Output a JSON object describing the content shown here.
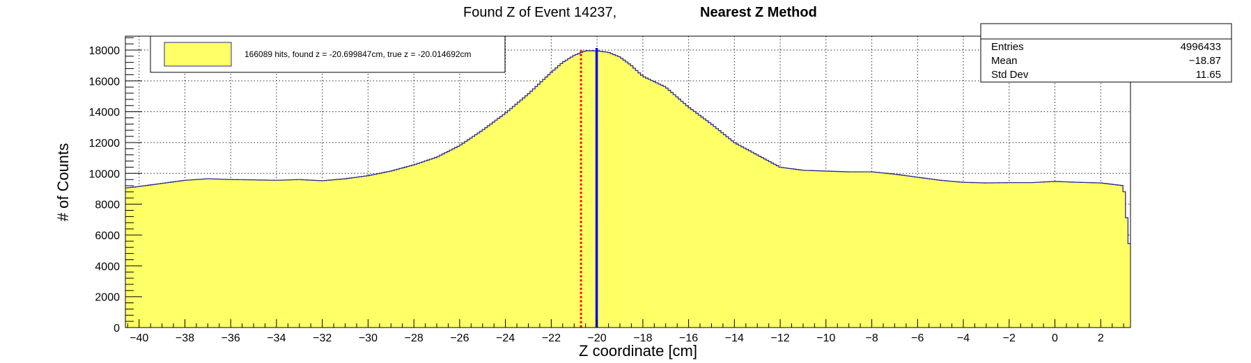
{
  "chart_data": {
    "type": "histogram",
    "title": "Found Z of Event 14237,",
    "title_bold": "Nearest Z Method",
    "xlabel": "Z coordinate [cm]",
    "ylabel": "# of Counts",
    "xlim": [
      -40.6,
      3.3
    ],
    "ylim": [
      0,
      18900
    ],
    "grid": true,
    "x_ticks": [
      -40,
      -38,
      -36,
      -34,
      -32,
      -30,
      -28,
      -26,
      -24,
      -22,
      -20,
      -18,
      -16,
      -14,
      -12,
      -10,
      -8,
      -6,
      -4,
      -2,
      0,
      2
    ],
    "y_ticks": [
      0,
      2000,
      4000,
      6000,
      8000,
      10000,
      12000,
      14000,
      16000,
      18000
    ],
    "fill_color": "#ffff66",
    "line_color": "#2a2a8c",
    "histogram_profile": {
      "x": [
        -40.6,
        -40,
        -39,
        -38,
        -37,
        -36,
        -35,
        -34,
        -33,
        -32,
        -31,
        -30,
        -29,
        -28,
        -27,
        -26,
        -25,
        -24,
        -23,
        -22,
        -21.5,
        -21,
        -20.5,
        -20,
        -19.5,
        -19,
        -18.5,
        -18,
        -17,
        -16,
        -15,
        -14,
        -13,
        -12,
        -11,
        -10,
        -9,
        -8,
        -7,
        -6,
        -5,
        -4,
        -3,
        -2,
        -1,
        0,
        1,
        2,
        3,
        3.3
      ],
      "y": [
        9050,
        9150,
        9350,
        9550,
        9650,
        9600,
        9580,
        9550,
        9600,
        9520,
        9650,
        9850,
        10150,
        10550,
        11050,
        11800,
        12800,
        13900,
        15150,
        16550,
        17200,
        17650,
        17950,
        17950,
        17850,
        17550,
        17000,
        16300,
        15600,
        14300,
        13200,
        12000,
        11200,
        10400,
        10200,
        10150,
        10100,
        10100,
        9950,
        9750,
        9550,
        9420,
        9380,
        9400,
        9400,
        9480,
        9420,
        9380,
        9200,
        4600
      ]
    },
    "vertical_markers": [
      {
        "name": "found z",
        "x": -20.699847,
        "color": "#ff0000",
        "style": "dotted"
      },
      {
        "name": "true z",
        "x": -20.014692,
        "color": "#0000ff",
        "style": "solid"
      }
    ],
    "legend": {
      "entry": "166089 hits, found z = -20.699847cm, true z = -20.014692cm",
      "placement": "top-left"
    },
    "stats": {
      "placement": "top-right",
      "rows": [
        {
          "label": "Entries",
          "value": "4996433"
        },
        {
          "label": "Mean",
          "value": "−18.87"
        },
        {
          "label": "Std Dev",
          "value": "11.65"
        }
      ]
    }
  }
}
